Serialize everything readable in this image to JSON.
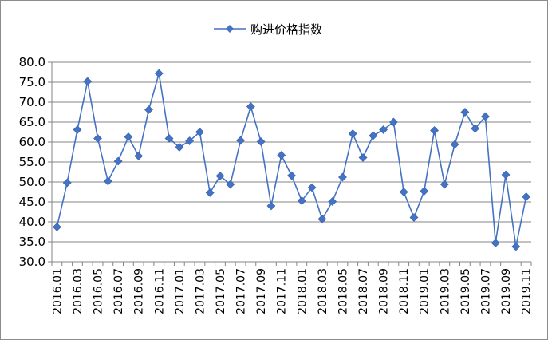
{
  "chart_data": {
    "type": "line",
    "title": "",
    "xlabel": "",
    "ylabel": "",
    "ylim": [
      30.0,
      80.0
    ],
    "yticks": [
      "30.0",
      "35.0",
      "40.0",
      "45.0",
      "50.0",
      "55.0",
      "60.0",
      "65.0",
      "70.0",
      "75.0",
      "80.0"
    ],
    "grid": "horizontal",
    "legend_position": "top",
    "x": [
      "2016.01",
      "2016.02",
      "2016.03",
      "2016.04",
      "2016.05",
      "2016.06",
      "2016.07",
      "2016.08",
      "2016.09",
      "2016.10",
      "2016.11",
      "2016.12",
      "2017.01",
      "2017.02",
      "2017.03",
      "2017.04",
      "2017.05",
      "2017.06",
      "2017.07",
      "2017.08",
      "2017.09",
      "2017.10",
      "2017.11",
      "2017.12",
      "2018.01",
      "2018.02",
      "2018.03",
      "2018.04",
      "2018.05",
      "2018.06",
      "2018.07",
      "2018.08",
      "2018.09",
      "2018.10",
      "2018.11",
      "2018.12",
      "2019.01",
      "2019.02",
      "2019.03",
      "2019.04",
      "2019.05",
      "2019.06",
      "2019.07",
      "2019.08",
      "2019.09",
      "2019.10",
      "2019.11"
    ],
    "xtick_labels": [
      "2016.01",
      "2016.03",
      "2016.05",
      "2016.07",
      "2016.09",
      "2016.11",
      "2017.01",
      "2017.03",
      "2017.05",
      "2017.07",
      "2017.09",
      "2017.11",
      "2018.01",
      "2018.03",
      "2018.05",
      "2018.07",
      "2018.09",
      "2018.11",
      "2019.01",
      "2019.03",
      "2019.05",
      "2019.07",
      "2019.09",
      "2019.11"
    ],
    "series": [
      {
        "name": "购进价格指数",
        "color": "#4472c4",
        "marker": "diamond",
        "values": [
          38.7,
          49.8,
          63.1,
          75.2,
          60.9,
          50.2,
          55.2,
          61.3,
          56.5,
          68.1,
          77.2,
          60.9,
          58.7,
          60.3,
          62.5,
          47.3,
          51.5,
          49.4,
          60.4,
          68.9,
          60.1,
          44.0,
          56.7,
          51.6,
          45.3,
          48.6,
          40.7,
          45.1,
          51.2,
          62.1,
          56.1,
          61.6,
          63.1,
          65.0,
          47.5,
          41.1,
          47.7,
          62.9,
          49.4,
          59.4,
          67.5,
          63.4,
          66.4,
          34.7,
          51.8,
          33.8,
          46.3
        ]
      }
    ]
  }
}
